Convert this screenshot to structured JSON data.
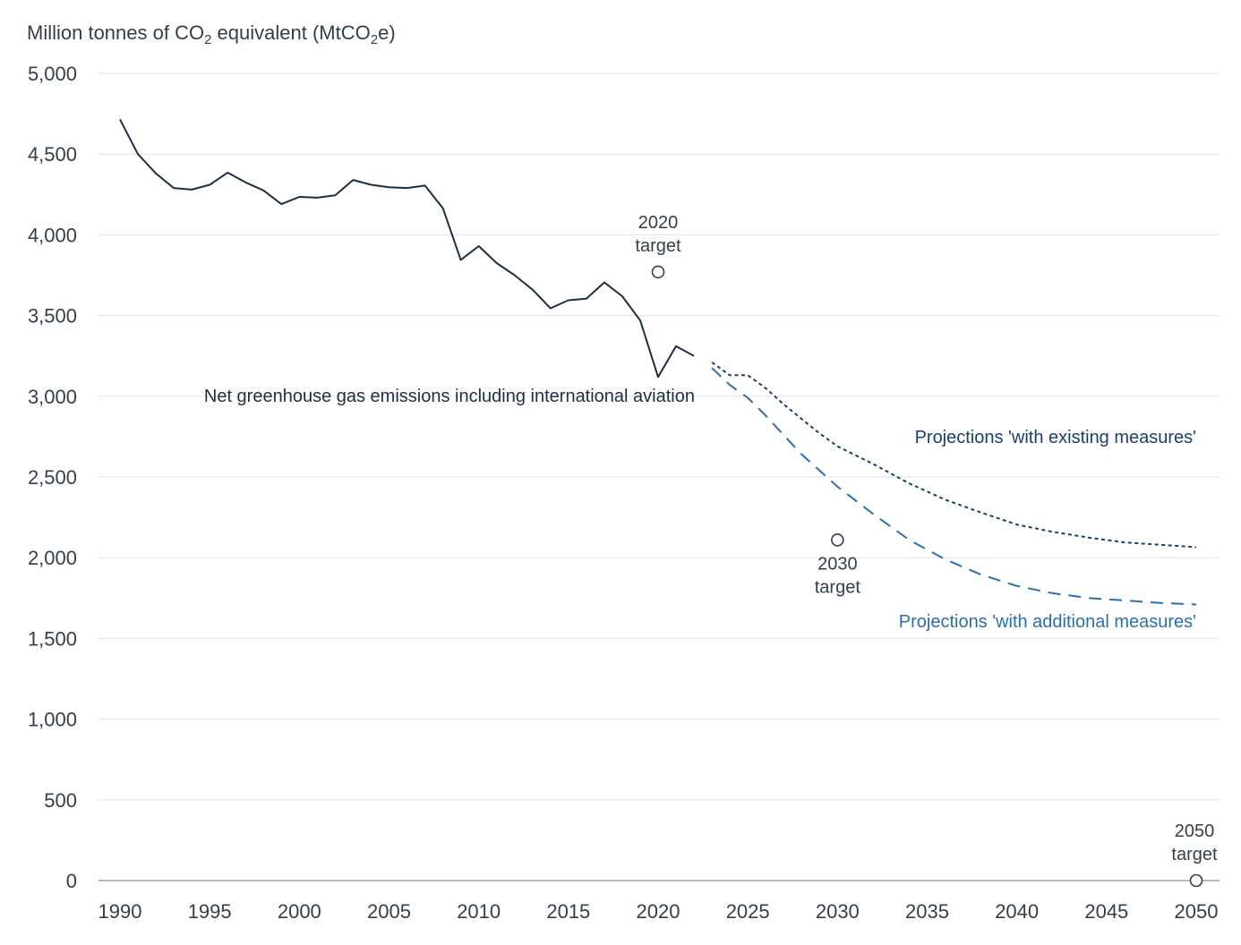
{
  "chart_data": {
    "type": "line",
    "ylabel": {
      "pre": "Million tonnes of CO",
      "sub1": "2",
      "mid": " equivalent (MtCO",
      "sub2": "2",
      "post": "e)"
    },
    "xlim": [
      1990,
      2050
    ],
    "ylim": [
      0,
      5000
    ],
    "x_ticks": [
      1990,
      1995,
      2000,
      2005,
      2010,
      2015,
      2020,
      2025,
      2030,
      2035,
      2040,
      2045,
      2050
    ],
    "x_tick_labels": [
      "1990",
      "1995",
      "2000",
      "2005",
      "2010",
      "2015",
      "2020",
      "2025",
      "2030",
      "2035",
      "2040",
      "2045",
      "2050"
    ],
    "y_ticks": [
      0,
      500,
      1000,
      1500,
      2000,
      2500,
      3000,
      3500,
      4000,
      4500,
      5000
    ],
    "y_tick_labels": [
      "0",
      "500",
      "1,000",
      "1,500",
      "2,000",
      "2,500",
      "3,000",
      "3,500",
      "4,000",
      "4,500",
      "5,000"
    ],
    "grid": true,
    "series": [
      {
        "name": "Net greenhouse gas emissions including international aviation",
        "style": "solid",
        "color": "#1b2f45",
        "x": [
          1990,
          1991,
          1992,
          1993,
          1994,
          1995,
          1996,
          1997,
          1998,
          1999,
          2000,
          2001,
          2002,
          2003,
          2004,
          2005,
          2006,
          2007,
          2008,
          2009,
          2010,
          2011,
          2012,
          2013,
          2014,
          2015,
          2016,
          2017,
          2018,
          2019,
          2020,
          2021,
          2022
        ],
        "y": [
          4715,
          4500,
          4380,
          4290,
          4280,
          4310,
          4385,
          4325,
          4275,
          4190,
          4235,
          4230,
          4245,
          4340,
          4310,
          4295,
          4290,
          4305,
          4165,
          3845,
          3930,
          3825,
          3750,
          3660,
          3545,
          3595,
          3605,
          3705,
          3620,
          3470,
          3120,
          3310,
          3250
        ]
      },
      {
        "name": "Projections 'with existing measures'",
        "style": "dotted",
        "color": "#1b3f6e",
        "x": [
          2023,
          2024,
          2025,
          2026,
          2027,
          2028,
          2029,
          2030,
          2032,
          2034,
          2036,
          2038,
          2040,
          2042,
          2044,
          2046,
          2048,
          2050
        ],
        "y": [
          3210,
          3130,
          3130,
          3050,
          2950,
          2860,
          2770,
          2690,
          2580,
          2460,
          2360,
          2280,
          2205,
          2160,
          2125,
          2095,
          2080,
          2065
        ]
      },
      {
        "name": "Projections 'with additional measures'",
        "style": "dashed",
        "color": "#2a6fad",
        "x": [
          2023,
          2024,
          2025,
          2026,
          2027,
          2028,
          2029,
          2030,
          2032,
          2034,
          2036,
          2038,
          2040,
          2042,
          2044,
          2046,
          2048,
          2050
        ],
        "y": [
          3175,
          3070,
          2990,
          2880,
          2760,
          2640,
          2540,
          2440,
          2270,
          2110,
          1990,
          1895,
          1825,
          1780,
          1750,
          1735,
          1720,
          1710
        ]
      }
    ],
    "targets": [
      {
        "x": 2020,
        "y": 3770,
        "label_line1": "2020",
        "label_line2": "target",
        "label_position": "above"
      },
      {
        "x": 2030,
        "y": 2110,
        "label_line1": "2030",
        "label_line2": "target",
        "label_position": "below"
      },
      {
        "x": 2050,
        "y": 0,
        "label_line1": "2050",
        "label_line2": "target",
        "label_position": "above"
      }
    ],
    "colors": {
      "text": "#333f48",
      "grid": "#e3e3e3"
    }
  }
}
